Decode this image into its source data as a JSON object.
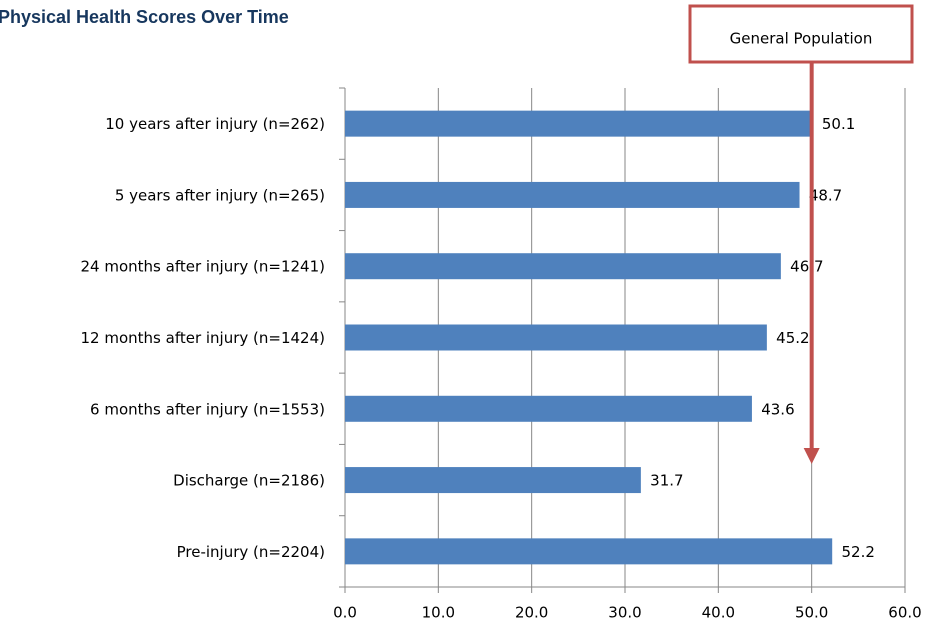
{
  "chart_data": {
    "type": "barh",
    "title": "Physical Health Scores Over Time",
    "categories": [
      "10 years after injury (n=262)",
      "5 years after injury (n=265)",
      "24 months after injury (n=1241)",
      "12 months after injury (n=1424)",
      "6 months after injury (n=1553)",
      "Discharge (n=2186)",
      "Pre-injury (n=2204)"
    ],
    "values": [
      50.1,
      48.7,
      46.7,
      45.2,
      43.6,
      31.7,
      52.2
    ],
    "color": "#4f81bd",
    "xlim": [
      0,
      60
    ],
    "xticks": [
      {
        "value": 0,
        "label": "0.0"
      },
      {
        "value": 10,
        "label": "10.0"
      },
      {
        "value": 20,
        "label": "20.0"
      },
      {
        "value": 30,
        "label": "30.0"
      },
      {
        "value": 40,
        "label": "40.0"
      },
      {
        "value": 50,
        "label": "50.0"
      },
      {
        "value": 60,
        "label": "60.0"
      }
    ],
    "grid": true,
    "annotation": {
      "text": "General Population",
      "x": 50,
      "color": "#c0504d"
    }
  }
}
